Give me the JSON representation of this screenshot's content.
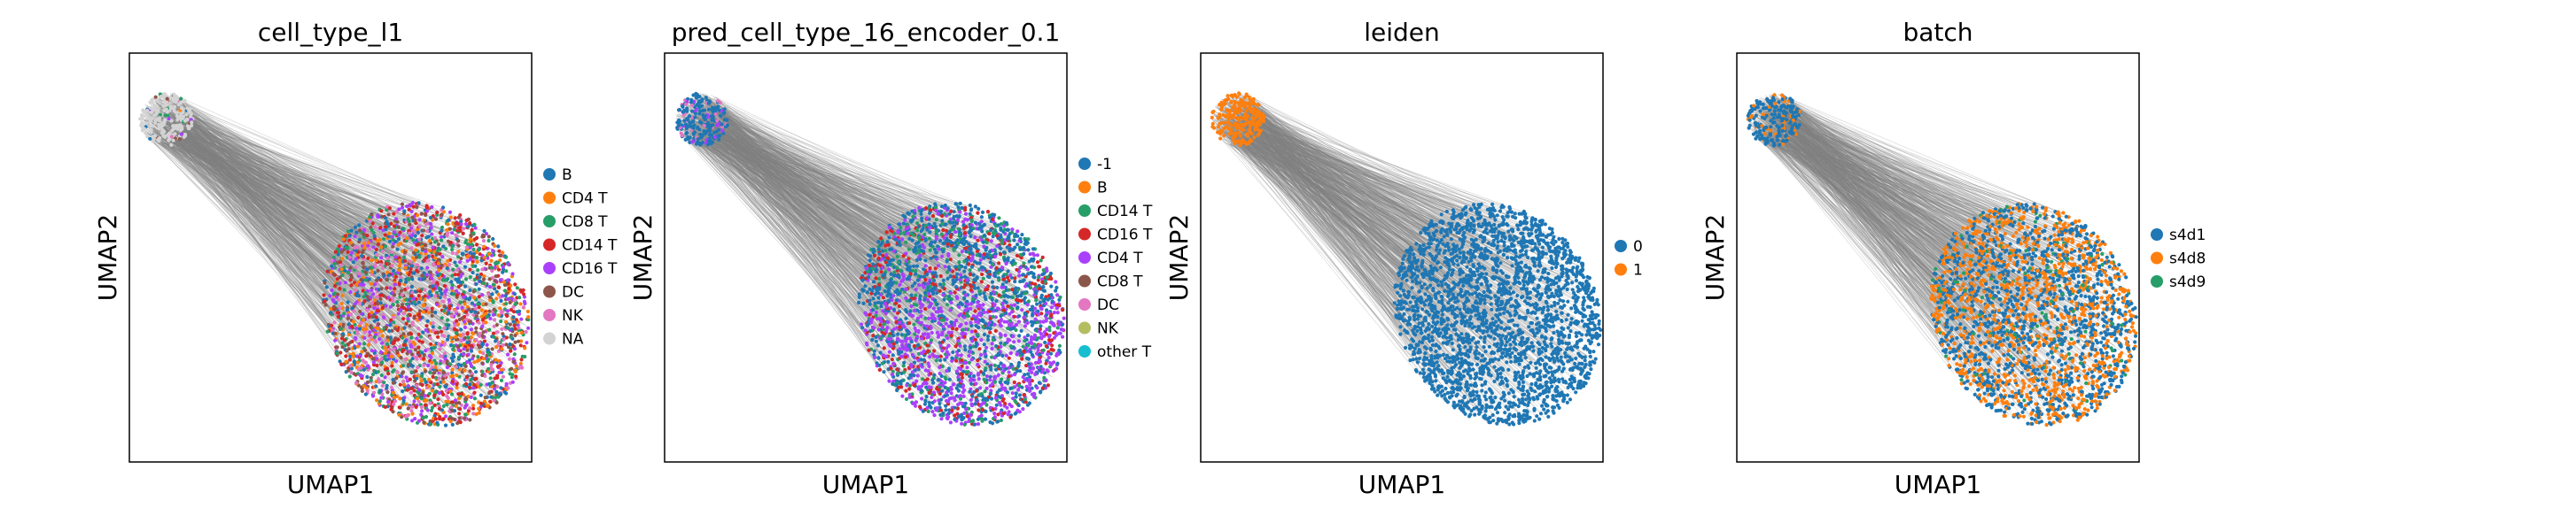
{
  "chart_data": [
    {
      "type": "scatter",
      "title": "cell_type_l1",
      "xlabel": "UMAP1",
      "ylabel": "UMAP2",
      "legend_position": "right",
      "categories": [
        "B",
        "CD4 T",
        "CD8 T",
        "CD14 T",
        "CD16 T",
        "DC",
        "NK",
        "NA"
      ],
      "colors": [
        "#1f77b4",
        "#ff7f0e",
        "#279e68",
        "#d62728",
        "#aa40fc",
        "#8c564b",
        "#e377c2",
        "#d3d3d3"
      ]
    },
    {
      "type": "scatter",
      "title": "pred_cell_type_16_encoder_0.1",
      "xlabel": "UMAP1",
      "ylabel": "UMAP2",
      "legend_position": "right",
      "categories": [
        "-1",
        "B",
        "CD14 T",
        "CD16 T",
        "CD4 T",
        "CD8 T",
        "DC",
        "NK",
        "other T"
      ],
      "colors": [
        "#1f77b4",
        "#ff7f0e",
        "#279e68",
        "#d62728",
        "#aa40fc",
        "#8c564b",
        "#e377c2",
        "#b5bd61",
        "#17becf"
      ]
    },
    {
      "type": "scatter",
      "title": "leiden",
      "xlabel": "UMAP1",
      "ylabel": "UMAP2",
      "legend_position": "right",
      "categories": [
        "0",
        "1"
      ],
      "colors": [
        "#1f77b4",
        "#ff7f0e"
      ]
    },
    {
      "type": "scatter",
      "title": "batch",
      "xlabel": "UMAP1",
      "ylabel": "UMAP2",
      "legend_position": "right",
      "categories": [
        "s4d1",
        "s4d8",
        "s4d9"
      ],
      "colors": [
        "#1f77b4",
        "#ff7f0e",
        "#279e68"
      ]
    }
  ]
}
